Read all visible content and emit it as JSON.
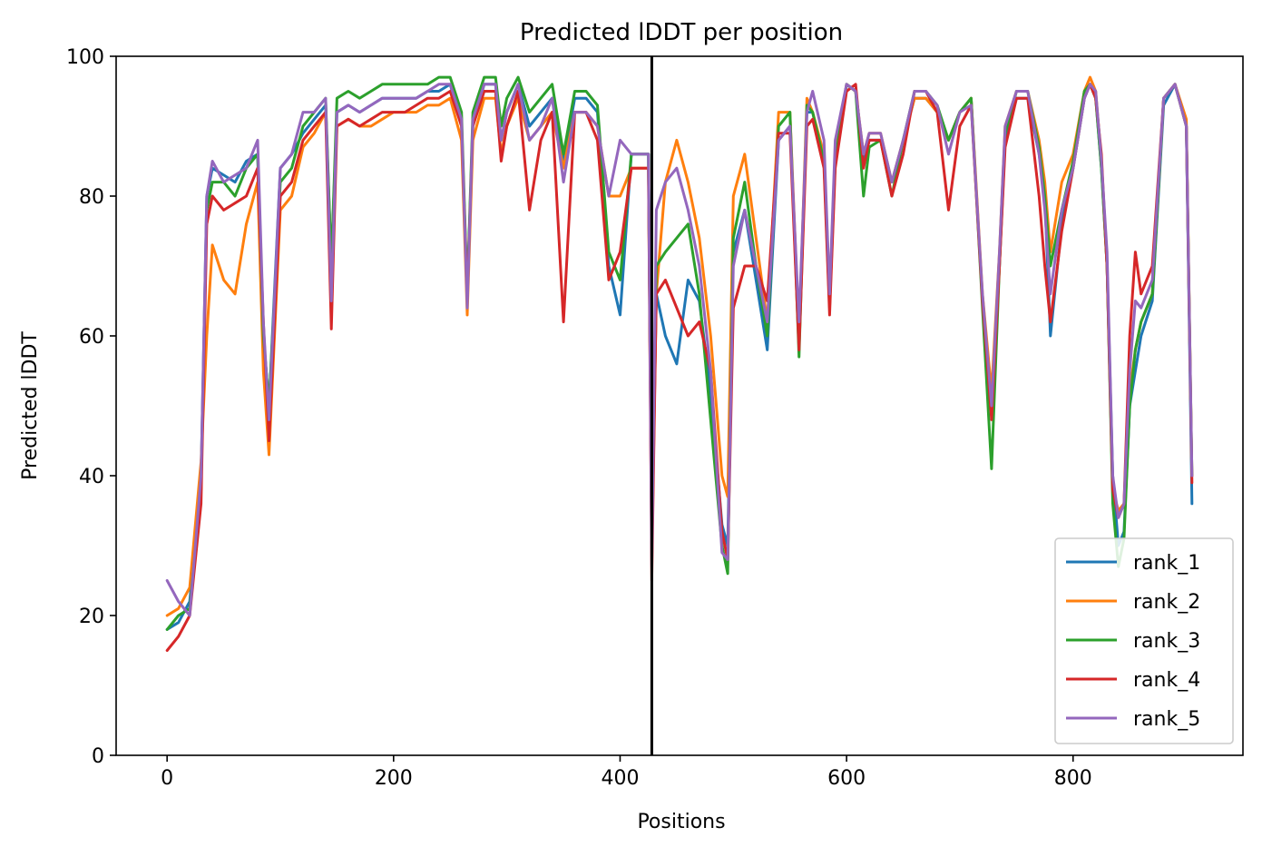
{
  "chart_data": {
    "type": "line",
    "title": "Predicted lDDT per position",
    "xlabel": "Positions",
    "ylabel": "Predicted lDDT",
    "xlim": [
      -45,
      950
    ],
    "ylim": [
      0,
      100
    ],
    "xticks": [
      0,
      200,
      400,
      600,
      800
    ],
    "yticks": [
      0,
      20,
      40,
      60,
      80,
      100
    ],
    "grid": false,
    "legend_position": "lower-right",
    "vline": {
      "x": 428,
      "color": "#000000"
    },
    "x": [
      0,
      10,
      20,
      30,
      35,
      40,
      50,
      60,
      70,
      80,
      85,
      90,
      100,
      110,
      120,
      130,
      140,
      145,
      150,
      160,
      170,
      180,
      190,
      200,
      210,
      220,
      230,
      240,
      250,
      260,
      265,
      270,
      280,
      290,
      295,
      300,
      310,
      320,
      330,
      340,
      350,
      360,
      370,
      380,
      390,
      400,
      410,
      420,
      425,
      428,
      432,
      440,
      450,
      460,
      470,
      480,
      490,
      495,
      500,
      510,
      520,
      530,
      540,
      550,
      558,
      565,
      570,
      580,
      585,
      590,
      600,
      608,
      615,
      620,
      630,
      640,
      650,
      660,
      670,
      680,
      690,
      700,
      710,
      720,
      728,
      735,
      740,
      750,
      760,
      770,
      775,
      780,
      790,
      800,
      810,
      815,
      820,
      825,
      830,
      835,
      840,
      845,
      850,
      855,
      860,
      870,
      880,
      890,
      900,
      905
    ],
    "series": [
      {
        "name": "rank_1",
        "color": "#1f77b4",
        "values": [
          18,
          19,
          22,
          40,
          80,
          84,
          83,
          82,
          85,
          86,
          60,
          50,
          84,
          86,
          89,
          91,
          93,
          70,
          92,
          93,
          92,
          93,
          94,
          94,
          94,
          94,
          95,
          95,
          96,
          90,
          66,
          90,
          96,
          96,
          88,
          92,
          96,
          90,
          92,
          94,
          85,
          94,
          94,
          92,
          70,
          63,
          86,
          86,
          86,
          30,
          66,
          60,
          56,
          68,
          65,
          52,
          33,
          30,
          72,
          78,
          68,
          58,
          88,
          90,
          60,
          92,
          92,
          85,
          65,
          85,
          96,
          95,
          85,
          88,
          88,
          82,
          88,
          94,
          94,
          92,
          88,
          92,
          94,
          65,
          50,
          70,
          88,
          94,
          94,
          86,
          80,
          60,
          76,
          84,
          94,
          96,
          94,
          84,
          70,
          40,
          30,
          32,
          50,
          55,
          60,
          65,
          93,
          96,
          90,
          36
        ]
      },
      {
        "name": "rank_2",
        "color": "#ff7f0e",
        "values": [
          20,
          21,
          24,
          42,
          60,
          73,
          68,
          66,
          76,
          82,
          55,
          43,
          78,
          80,
          87,
          89,
          92,
          70,
          90,
          91,
          90,
          90,
          91,
          92,
          92,
          92,
          93,
          93,
          94,
          88,
          63,
          88,
          94,
          94,
          86,
          90,
          94,
          88,
          90,
          92,
          84,
          92,
          92,
          90,
          80,
          80,
          84,
          84,
          84,
          28,
          66,
          82,
          88,
          82,
          74,
          60,
          40,
          37,
          80,
          86,
          74,
          62,
          92,
          92,
          60,
          94,
          92,
          86,
          66,
          86,
          96,
          95,
          86,
          89,
          89,
          82,
          88,
          94,
          94,
          92,
          88,
          92,
          94,
          66,
          52,
          72,
          90,
          95,
          95,
          88,
          82,
          72,
          82,
          86,
          95,
          97,
          95,
          85,
          70,
          38,
          35,
          36,
          52,
          58,
          62,
          66,
          94,
          96,
          91,
          40
        ]
      },
      {
        "name": "rank_3",
        "color": "#2ca02c",
        "values": [
          18,
          20,
          21,
          38,
          78,
          82,
          82,
          80,
          84,
          86,
          60,
          50,
          82,
          84,
          90,
          92,
          94,
          70,
          94,
          95,
          94,
          95,
          96,
          96,
          96,
          96,
          96,
          97,
          97,
          92,
          66,
          92,
          97,
          97,
          90,
          94,
          97,
          92,
          94,
          96,
          86,
          95,
          95,
          93,
          72,
          68,
          86,
          86,
          86,
          30,
          70,
          72,
          74,
          76,
          66,
          48,
          30,
          26,
          74,
          82,
          70,
          60,
          90,
          92,
          57,
          93,
          92,
          85,
          64,
          85,
          96,
          95,
          80,
          87,
          88,
          80,
          88,
          95,
          95,
          93,
          88,
          92,
          94,
          64,
          41,
          70,
          89,
          95,
          95,
          87,
          80,
          70,
          78,
          85,
          95,
          96,
          94,
          84,
          70,
          36,
          27,
          31,
          50,
          58,
          62,
          66,
          94,
          96,
          90,
          40
        ]
      },
      {
        "name": "rank_4",
        "color": "#d62728",
        "values": [
          15,
          17,
          20,
          36,
          76,
          80,
          78,
          79,
          80,
          84,
          62,
          45,
          80,
          82,
          88,
          90,
          92,
          61,
          90,
          91,
          90,
          91,
          92,
          92,
          92,
          93,
          94,
          94,
          95,
          90,
          65,
          90,
          95,
          95,
          85,
          90,
          95,
          78,
          88,
          92,
          62,
          92,
          92,
          88,
          68,
          72,
          84,
          84,
          84,
          25,
          66,
          68,
          64,
          60,
          62,
          55,
          32,
          28,
          64,
          70,
          70,
          65,
          89,
          89,
          58,
          90,
          91,
          84,
          63,
          84,
          95,
          96,
          84,
          88,
          88,
          80,
          86,
          95,
          95,
          92,
          78,
          90,
          93,
          65,
          48,
          70,
          87,
          94,
          94,
          80,
          70,
          62,
          75,
          84,
          94,
          96,
          94,
          86,
          70,
          38,
          34,
          36,
          60,
          72,
          66,
          70,
          94,
          96,
          90,
          39
        ]
      },
      {
        "name": "rank_5",
        "color": "#9467bd",
        "values": [
          25,
          22,
          20,
          40,
          80,
          85,
          82,
          83,
          84,
          88,
          62,
          48,
          84,
          86,
          92,
          92,
          94,
          65,
          92,
          93,
          92,
          93,
          94,
          94,
          94,
          94,
          95,
          96,
          96,
          91,
          64,
          91,
          96,
          96,
          88,
          92,
          96,
          88,
          90,
          94,
          82,
          92,
          92,
          90,
          80,
          88,
          86,
          86,
          86,
          27,
          78,
          82,
          84,
          78,
          70,
          55,
          29,
          28,
          70,
          78,
          70,
          62,
          88,
          90,
          62,
          92,
          95,
          88,
          66,
          88,
          96,
          95,
          86,
          89,
          89,
          82,
          88,
          95,
          95,
          93,
          86,
          92,
          93,
          66,
          50,
          72,
          90,
          95,
          95,
          86,
          78,
          66,
          78,
          84,
          94,
          96,
          95,
          85,
          72,
          40,
          34,
          36,
          55,
          65,
          64,
          68,
          94,
          96,
          90,
          40
        ]
      }
    ]
  }
}
